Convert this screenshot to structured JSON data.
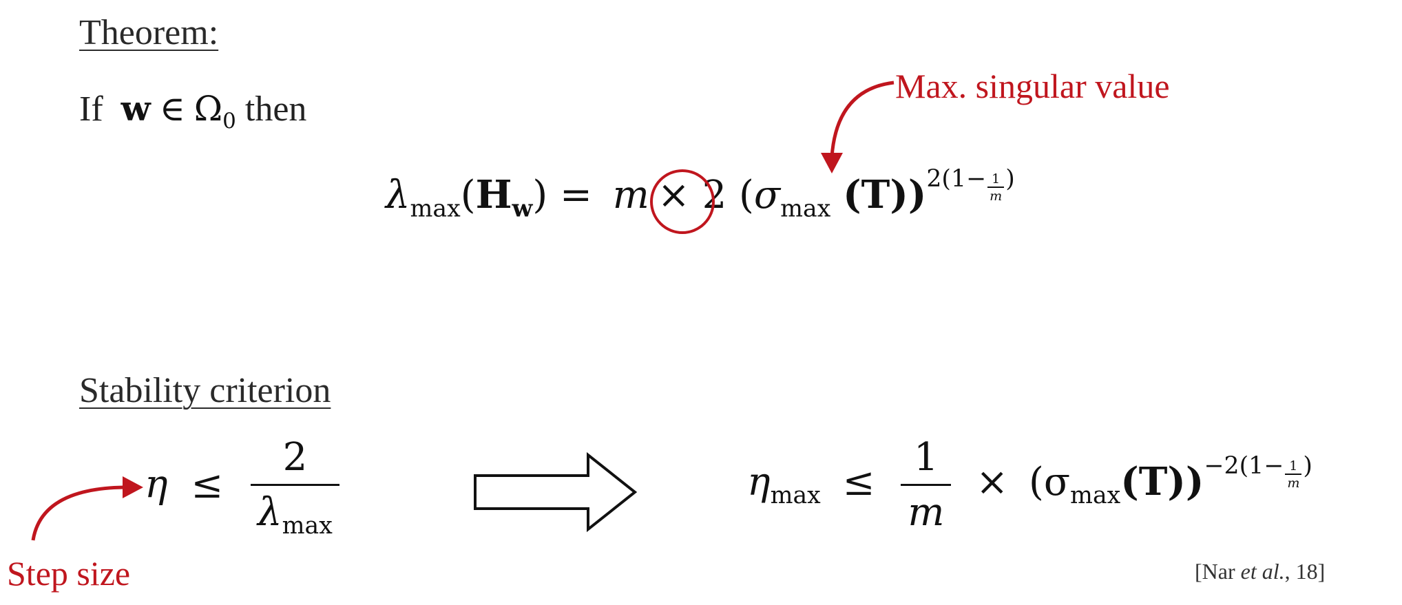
{
  "theorem": {
    "heading": "Theorem:",
    "if_word": "If",
    "w_symbol": "w",
    "in_symbol": "∈",
    "omega": "Ω",
    "omega_sub": "0",
    "then_word": "then"
  },
  "equation1": {
    "lambda": "λ",
    "lambda_sub": "max",
    "open_paren": "(",
    "H": "H",
    "H_sub": "w",
    "close_paren_eq": ") =",
    "m": "m",
    "times_two": "× 2",
    "open_paren_outer": "(",
    "sigma": "σ",
    "sigma_sub": "max",
    "T_part": "(T))",
    "exp_prefix": "2(1−",
    "exp_num": "1",
    "exp_den": "m",
    "exp_suffix": ")"
  },
  "annotation_max_singular": "Max. singular value",
  "stability": {
    "heading": "Stability criterion",
    "eta": "η",
    "leq": "≤",
    "num": "2",
    "den_lambda": "λ",
    "den_sub": "max"
  },
  "equation2": {
    "eta": "η",
    "eta_sub": "max",
    "leq": "≤",
    "num": "1",
    "den": "m",
    "times": "×",
    "sigma_open": "(σ",
    "sigma_sub": "max",
    "T_part": "(T))",
    "exp_prefix": "−2(1−",
    "exp_num": "1",
    "exp_den": "m",
    "exp_suffix": ")"
  },
  "annotation_step_size": "Step size",
  "citation": {
    "open": "[Nar ",
    "et_al": "et al.",
    "close": ", 18]"
  },
  "colors": {
    "annotation_red": "#c0161e",
    "text": "#111111"
  }
}
